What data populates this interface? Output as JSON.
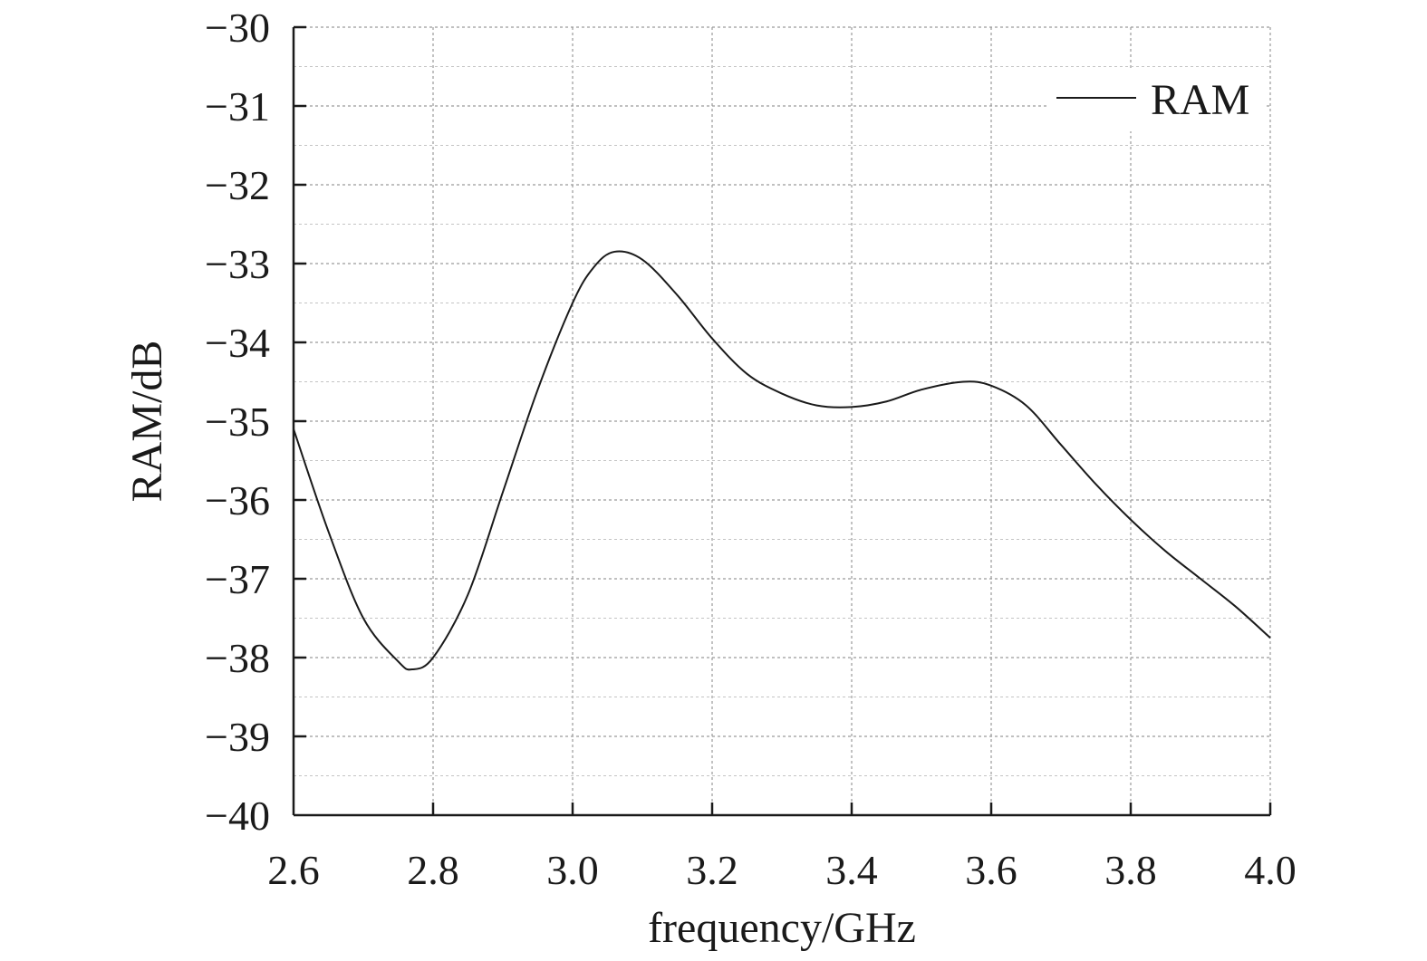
{
  "chart_data": {
    "type": "line",
    "xlabel": "frequency/GHz",
    "ylabel": "RAM/dB",
    "xlim": [
      2.6,
      4.0
    ],
    "ylim": [
      -40,
      -30
    ],
    "x_ticks": [
      "2.6",
      "2.8",
      "3.0",
      "3.2",
      "3.4",
      "3.6",
      "3.8",
      "4.0"
    ],
    "y_ticks": [
      "−30",
      "−31",
      "−32",
      "−33",
      "−34",
      "−35",
      "−36",
      "−37",
      "−38",
      "−39",
      "−40"
    ],
    "grid": true,
    "legend_position": "top-right",
    "series": [
      {
        "name": "RAM",
        "color": "#1a1a1a",
        "x": [
          2.6,
          2.65,
          2.7,
          2.75,
          2.77,
          2.8,
          2.85,
          2.9,
          2.95,
          3.0,
          3.03,
          3.06,
          3.1,
          3.15,
          3.2,
          3.25,
          3.3,
          3.35,
          3.4,
          3.45,
          3.5,
          3.56,
          3.6,
          3.65,
          3.7,
          3.75,
          3.8,
          3.85,
          3.9,
          3.95,
          4.0
        ],
        "y": [
          -35.1,
          -36.4,
          -37.5,
          -38.05,
          -38.15,
          -38.0,
          -37.2,
          -35.9,
          -34.6,
          -33.5,
          -33.05,
          -32.85,
          -32.95,
          -33.4,
          -33.95,
          -34.4,
          -34.65,
          -34.8,
          -34.82,
          -34.75,
          -34.6,
          -34.5,
          -34.55,
          -34.8,
          -35.3,
          -35.8,
          -36.25,
          -36.65,
          -37.0,
          -37.35,
          -37.75
        ]
      }
    ]
  }
}
